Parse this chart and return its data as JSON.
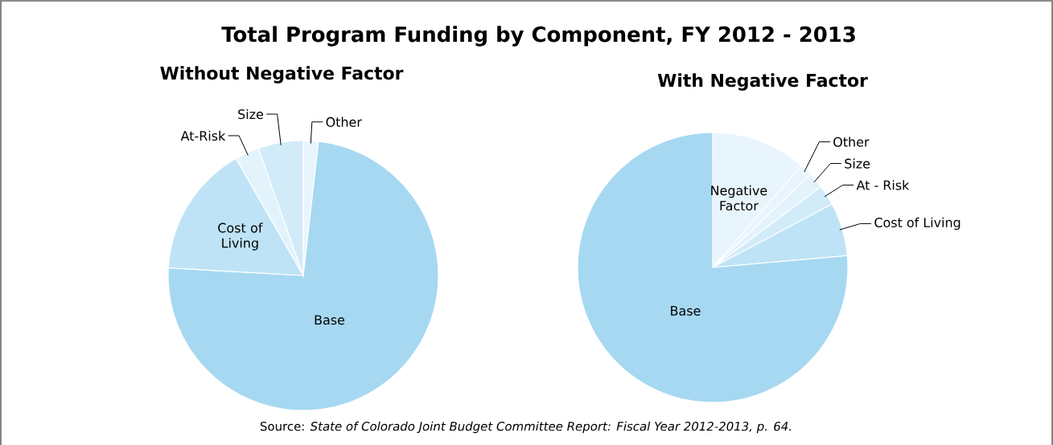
{
  "chart_data": [
    {
      "type": "pie",
      "title": "Total Program Funding by Component, FY 2012 - 2013",
      "subtitle": "Without Negative Factor",
      "categories": [
        "Other",
        "Base",
        "Cost of Living",
        "At-Risk",
        "Size"
      ],
      "values": [
        1.8,
        74.1,
        15.8,
        2.9,
        5.4
      ],
      "colors": [
        "#e8f5fc",
        "#a6d8f2",
        "#bfe3f6",
        "#e2f3fc",
        "#d2ebf9"
      ],
      "annotations": [
        "Source: *State of Colorado Joint Budget Committee Report: Fiscal Year 2012-2013, p. 64.*"
      ]
    },
    {
      "type": "pie",
      "subtitle": "With Negative Factor",
      "categories": [
        "Negative Factor",
        "Other",
        "Size",
        "At - Risk",
        "Cost of Living",
        "Base"
      ],
      "values": [
        11.4,
        1.5,
        1.9,
        2.4,
        6.4,
        76.4
      ],
      "colors": [
        "#e8f5fc",
        "#e8f5fc",
        "#e2f3fc",
        "#d2ebf9",
        "#bfe3f6",
        "#a6d8f2"
      ]
    }
  ]
}
